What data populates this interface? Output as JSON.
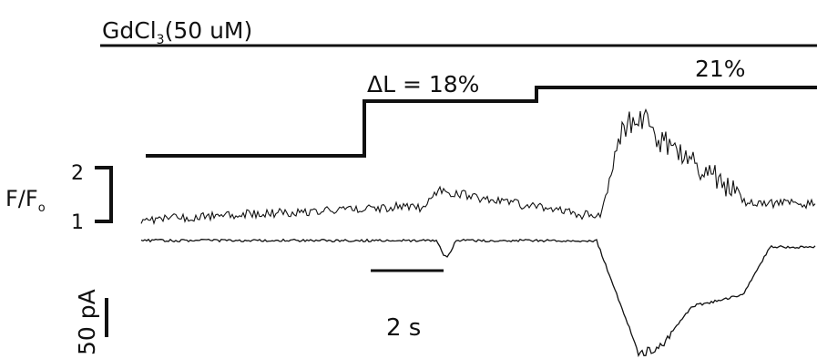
{
  "drug_label": {
    "base": "GdCl",
    "subscript": "3",
    "rest": "(50 uM)"
  },
  "stretch_labels": {
    "step1": "ΔL = 18%",
    "step2": "21%"
  },
  "fluorescence_axis": {
    "label_base": "F/F",
    "label_sub": "o",
    "tick_high": "2",
    "tick_low": "1"
  },
  "time_scale": {
    "label": "2 s"
  },
  "current_scale": {
    "label": "50 pA"
  },
  "colors": {
    "ink": "#111111",
    "background": "#ffffff"
  }
}
